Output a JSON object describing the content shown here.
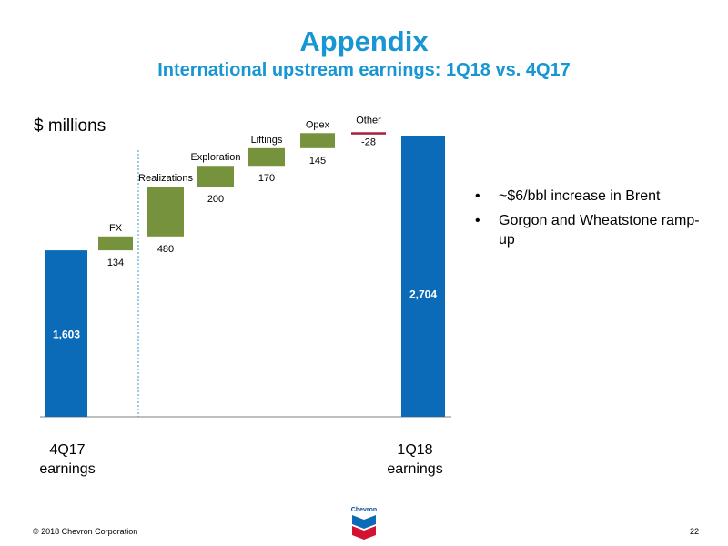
{
  "title": "Appendix",
  "subtitle": "International upstream earnings: 1Q18 vs. 4Q17",
  "unit_label": "$ millions",
  "bullets": [
    "~$6/bbl increase in Brent",
    "Gorgon and Wheatstone ramp-up"
  ],
  "footer": {
    "copyright": "© 2018 Chevron Corporation",
    "page_number": "22"
  },
  "logo": {
    "name": "Chevron",
    "icon": "chevron-logo-icon"
  },
  "colors": {
    "total": "#0c6bb8",
    "change": "#76923c",
    "negative": "#a51f3f",
    "title": "#1896d4",
    "divider": "#5ea7d6"
  },
  "chart_data": {
    "type": "waterfall",
    "title": "International upstream earnings: 1Q18 vs. 4Q17",
    "ylabel": "$ millions",
    "ylim": [
      0,
      3050
    ],
    "steps": [
      {
        "key": "start",
        "kind": "total",
        "value": 1603,
        "label_lines": [
          "4Q17",
          "earnings"
        ],
        "value_label": "1,603"
      },
      {
        "key": "fx",
        "kind": "delta",
        "value": 134,
        "name": "FX",
        "value_label": "134"
      },
      {
        "key": "realizations",
        "kind": "delta",
        "value": 480,
        "name": "Realizations",
        "value_label": "480"
      },
      {
        "key": "exploration",
        "kind": "delta",
        "value": 200,
        "name": "Exploration",
        "value_label": "200"
      },
      {
        "key": "liftings",
        "kind": "delta",
        "value": 170,
        "name": "Liftings",
        "value_label": "170"
      },
      {
        "key": "opex",
        "kind": "delta",
        "value": 145,
        "name": "Opex",
        "value_label": "145"
      },
      {
        "key": "other",
        "kind": "delta",
        "value": -28,
        "name": "Other",
        "value_label": "-28"
      },
      {
        "key": "end",
        "kind": "total",
        "value": 2704,
        "label_lines": [
          "1Q18",
          "earnings"
        ],
        "value_label": "2,704"
      }
    ]
  }
}
